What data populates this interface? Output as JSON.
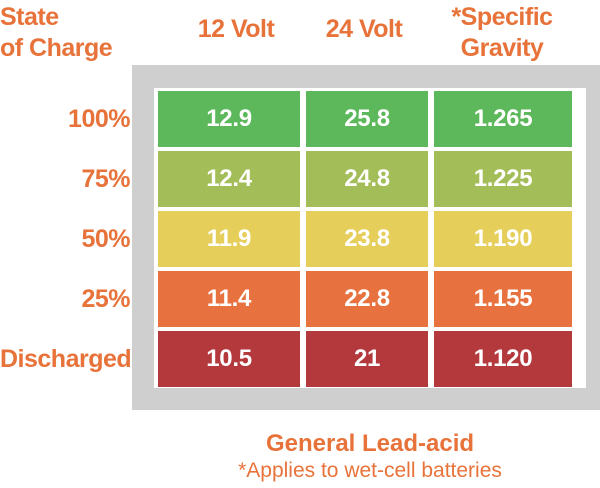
{
  "headers": {
    "state_line1": "State",
    "state_line2": "of Charge",
    "col1": "12 Volt",
    "col2": "24 Volt",
    "col3_line1": "*Specific",
    "col3_line2": "Gravity"
  },
  "rows": [
    {
      "label": "100%",
      "v12": "12.9",
      "v24": "25.8",
      "sg": "1.265",
      "color": "#5db85b"
    },
    {
      "label": "75%",
      "v12": "12.4",
      "v24": "24.8",
      "sg": "1.225",
      "color": "#a3be58"
    },
    {
      "label": "50%",
      "v12": "11.9",
      "v24": "23.8",
      "sg": "1.190",
      "color": "#e5cf5a"
    },
    {
      "label": "25%",
      "v12": "11.4",
      "v24": "22.8",
      "sg": "1.155",
      "color": "#e7723f"
    },
    {
      "label": "Discharged",
      "v12": "10.5",
      "v24": "21",
      "sg": "1.120",
      "color": "#b3393d"
    }
  ],
  "footer": {
    "title": "General Lead-acid",
    "note": "*Applies to wet-cell batteries"
  }
}
